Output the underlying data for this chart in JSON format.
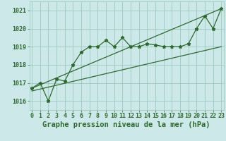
{
  "title": "Graphe pression niveau de la mer (hPa)",
  "x_labels": [
    "0",
    "1",
    "2",
    "3",
    "4",
    "5",
    "6",
    "7",
    "8",
    "9",
    "10",
    "11",
    "12",
    "13",
    "14",
    "15",
    "16",
    "17",
    "18",
    "19",
    "20",
    "21",
    "22",
    "23"
  ],
  "x_values": [
    0,
    1,
    2,
    3,
    4,
    5,
    6,
    7,
    8,
    9,
    10,
    11,
    12,
    13,
    14,
    15,
    16,
    17,
    18,
    19,
    20,
    21,
    22,
    23
  ],
  "main_line": [
    1016.7,
    1017.0,
    1016.0,
    1017.2,
    1017.1,
    1018.0,
    1018.7,
    1019.0,
    1019.0,
    1019.35,
    1019.0,
    1019.5,
    1019.0,
    1019.0,
    1019.15,
    1019.1,
    1019.0,
    1019.0,
    1019.0,
    1019.15,
    1020.0,
    1020.7,
    1020.0,
    1021.1
  ],
  "upper_line_x": [
    0,
    23
  ],
  "upper_line_y": [
    1016.7,
    1021.1
  ],
  "lower_line_x": [
    0,
    23
  ],
  "lower_line_y": [
    1016.55,
    1019.0
  ],
  "line_color": "#2d6a2d",
  "bg_color": "#cce8e8",
  "grid_color": "#99ccbb",
  "ylim": [
    1015.5,
    1021.5
  ],
  "yticks": [
    1016,
    1017,
    1018,
    1019,
    1020,
    1021
  ],
  "xlim": [
    -0.3,
    23.3
  ],
  "title_fontsize": 7.5,
  "tick_fontsize": 6
}
